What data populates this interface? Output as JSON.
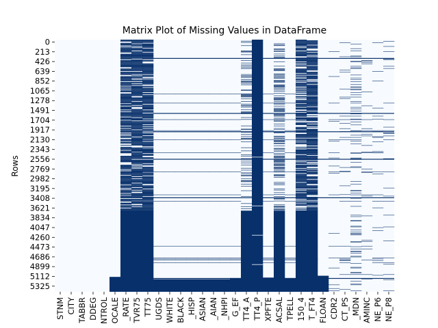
{
  "chart_data": {
    "type": "heatmap",
    "title": "Matrix Plot of Missing Values in DataFrame",
    "xlabel": "",
    "ylabel": "Rows",
    "colors": {
      "present": "#f7fbff",
      "missing": "#08306b"
    },
    "n_rows": 5500,
    "ylim": [
      0,
      5500
    ],
    "y_ticks": [
      0,
      213,
      426,
      639,
      852,
      1065,
      1278,
      1491,
      1704,
      1917,
      2130,
      2343,
      2556,
      2769,
      2982,
      3195,
      3408,
      3621,
      3834,
      4047,
      4260,
      4473,
      4686,
      4899,
      5112,
      5325
    ],
    "x_tick_labels": [
      "STNM",
      "CITY",
      "TABBR",
      "DDEG",
      "NTROL",
      "OCALE",
      "_RATE",
      "TVR75",
      "TT75",
      "UGDS",
      "WHITE",
      "BLACK",
      "_HISP",
      "ASIAN",
      "_AIAN",
      "_NHPI",
      "G_EF",
      "TT4_A",
      "TT4_P",
      "XPFTE",
      "ACSAL",
      "TPELL",
      "150_4",
      "T_FT4",
      "FLOAN",
      "CDR2",
      "CT_PS",
      "_MDN",
      "AMINC",
      "NE_P6",
      "NE_P8"
    ],
    "columns": [
      {
        "pattern": "none"
      },
      {
        "pattern": "none"
      },
      {
        "pattern": "none"
      },
      {
        "pattern": "none"
      },
      {
        "pattern": "none"
      },
      {
        "pattern": "tail",
        "from": 5175
      },
      {
        "pattern": "mostly",
        "until": 3730,
        "density": 0.78,
        "solid_from": 3730
      },
      {
        "pattern": "mostly",
        "until": 3730,
        "density": 0.82,
        "solid_from": 3730
      },
      {
        "pattern": "mostly",
        "until": 3730,
        "density": 0.82,
        "solid_from": 3730
      },
      {
        "pattern": "tail_lines",
        "from": 5225
      },
      {
        "pattern": "tail_lines",
        "from": 5225
      },
      {
        "pattern": "tail_lines",
        "from": 5225
      },
      {
        "pattern": "tail_lines",
        "from": 5225
      },
      {
        "pattern": "tail_lines",
        "from": 5225
      },
      {
        "pattern": "tail_lines",
        "from": 5225
      },
      {
        "pattern": "tail_lines",
        "from": 5225
      },
      {
        "pattern": "tail_lines",
        "from": 5200
      },
      {
        "pattern": "sparse_then_solid",
        "density": 0.35,
        "solid_from": 3730
      },
      {
        "pattern": "mostly_solid"
      },
      {
        "pattern": "tail_lines",
        "from": 5190
      },
      {
        "pattern": "sparse_then_solid",
        "density": 0.45,
        "solid_from": 3730
      },
      {
        "pattern": "tail_lines",
        "from": 5200
      },
      {
        "pattern": "mostly",
        "until": 3730,
        "density": 0.75,
        "solid_from": 3730
      },
      {
        "pattern": "mostly",
        "until": 3730,
        "density": 0.75,
        "solid_from": 3730
      },
      {
        "pattern": "tail",
        "from": 5150
      },
      {
        "pattern": "lines",
        "density": 0.05
      },
      {
        "pattern": "lines",
        "density": 0.06
      },
      {
        "pattern": "lines",
        "density": 0.22
      },
      {
        "pattern": "lines",
        "density": 0.05
      },
      {
        "pattern": "lines",
        "density": 0.06
      },
      {
        "pattern": "lines",
        "density": 0.07
      }
    ]
  }
}
